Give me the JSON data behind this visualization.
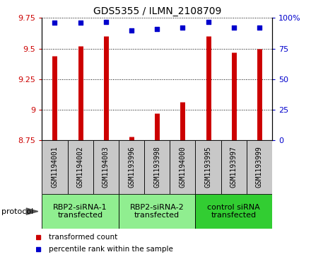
{
  "title": "GDS5355 / ILMN_2108709",
  "samples": [
    "GSM1194001",
    "GSM1194002",
    "GSM1194003",
    "GSM1193996",
    "GSM1193998",
    "GSM1194000",
    "GSM1193995",
    "GSM1193997",
    "GSM1193999"
  ],
  "red_values": [
    9.44,
    9.52,
    9.6,
    8.78,
    8.97,
    9.06,
    9.6,
    9.47,
    9.5
  ],
  "blue_values": [
    96,
    96,
    97,
    90,
    91,
    92,
    97,
    92,
    92
  ],
  "ylim_left": [
    8.75,
    9.75
  ],
  "ylim_right": [
    0,
    100
  ],
  "yticks_left": [
    8.75,
    9.0,
    9.25,
    9.5,
    9.75
  ],
  "yticks_right": [
    0,
    25,
    50,
    75,
    100
  ],
  "ytick_labels_left": [
    "8.75",
    "9",
    "9.25",
    "9.5",
    "9.75"
  ],
  "ytick_labels_right": [
    "0",
    "25",
    "50",
    "75",
    "100%"
  ],
  "groups": [
    {
      "label": "RBP2-siRNA-1\ntransfected",
      "indices": [
        0,
        1,
        2
      ],
      "color": "#90EE90"
    },
    {
      "label": "RBP2-siRNA-2\ntransfected",
      "indices": [
        3,
        4,
        5
      ],
      "color": "#90EE90"
    },
    {
      "label": "control siRNA\ntransfected",
      "indices": [
        6,
        7,
        8
      ],
      "color": "#32CD32"
    }
  ],
  "protocol_label": "protocol",
  "legend_red_label": "transformed count",
  "legend_blue_label": "percentile rank within the sample",
  "bar_color": "#CC0000",
  "dot_color": "#0000CC",
  "bar_linewidth": 5.0,
  "sample_bg_color": "#C8C8C8",
  "title_fontsize": 10,
  "tick_fontsize": 8,
  "sample_fontsize": 7,
  "group_fontsize": 8,
  "legend_fontsize": 7.5,
  "protocol_fontsize": 8
}
